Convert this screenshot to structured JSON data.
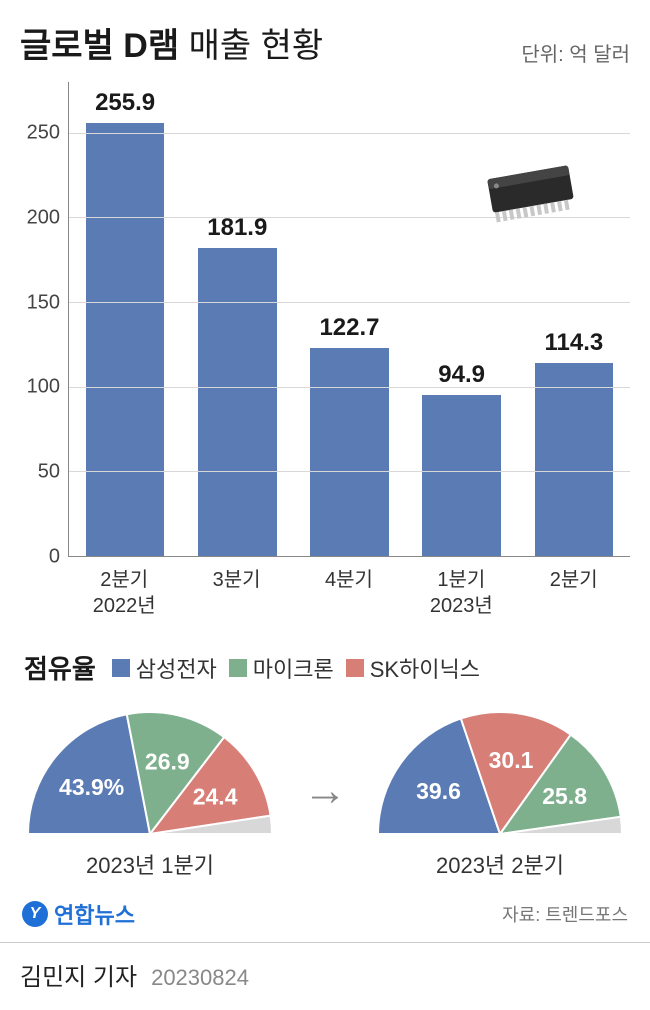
{
  "title_bold": "글로벌 D램",
  "title_rest": " 매출 현황",
  "unit": "단위: 억 달러",
  "bar_chart": {
    "type": "bar",
    "ylim": [
      0,
      280
    ],
    "yticks": [
      0,
      50,
      100,
      150,
      200,
      250
    ],
    "grid_color": "#d8d8d8",
    "bar_color": "#5b7bb4",
    "categories": [
      "2분기",
      "3분기",
      "4분기",
      "1분기",
      "2분기"
    ],
    "category_sub": [
      "2022년",
      "",
      "",
      "2023년",
      ""
    ],
    "values": [
      255.9,
      181.9,
      122.7,
      94.9,
      114.3
    ],
    "value_fontsize": 24,
    "tick_fontsize": 20,
    "axis_color": "#888888"
  },
  "share": {
    "title": "점유율",
    "legend": [
      {
        "label": "삼성전자",
        "color": "#5b7bb4"
      },
      {
        "label": "마이크론",
        "color": "#7fb08e"
      },
      {
        "label": "SK하이닉스",
        "color": "#d77e76"
      }
    ],
    "other_color": "#d8d8d8",
    "left": {
      "label": "2023년 1분기",
      "slices": [
        {
          "name": "samsung",
          "value": 43.9,
          "display": "43.9%",
          "color": "#5b7bb4"
        },
        {
          "name": "micron",
          "value": 26.9,
          "display": "26.9",
          "color": "#7fb08e"
        },
        {
          "name": "skhynix",
          "value": 24.4,
          "display": "24.4",
          "color": "#d77e76"
        },
        {
          "name": "other",
          "value": 4.8,
          "display": "",
          "color": "#d8d8d8"
        }
      ]
    },
    "right": {
      "label": "2023년 2분기",
      "slices": [
        {
          "name": "samsung",
          "value": 39.6,
          "display": "39.6",
          "color": "#5b7bb4"
        },
        {
          "name": "skhynix",
          "value": 30.1,
          "display": "30.1",
          "color": "#d77e76"
        },
        {
          "name": "micron",
          "value": 25.8,
          "display": "25.8",
          "color": "#7fb08e"
        },
        {
          "name": "other",
          "value": 4.5,
          "display": "",
          "color": "#d8d8d8"
        }
      ]
    },
    "arrow": "→"
  },
  "logo": {
    "glyph": "Y",
    "text": "연합뉴스"
  },
  "source_label": "자료: 트렌드포스",
  "byline": "김민지 기자",
  "date": "20230824"
}
